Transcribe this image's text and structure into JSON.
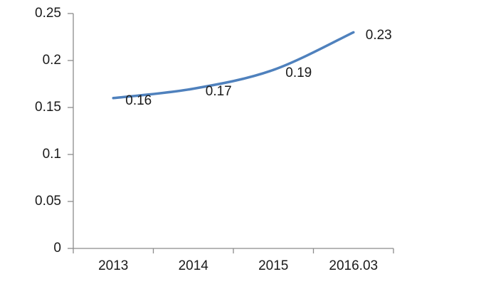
{
  "chart_data": {
    "type": "line",
    "title": "",
    "xlabel": "",
    "ylabel": "",
    "categories": [
      "2013",
      "2014",
      "2015",
      "2016.03"
    ],
    "series": [
      {
        "name": "",
        "values": [
          0.16,
          0.17,
          0.19,
          0.23
        ]
      }
    ],
    "data_labels": [
      "0.16",
      "0.17",
      "0.19",
      "0.23"
    ],
    "y_ticks": [
      "0",
      "0.05",
      "0.1",
      "0.15",
      "0.2",
      "0.25"
    ],
    "ylim": [
      0,
      0.25
    ],
    "grid": false,
    "legend": "none",
    "smooth": true,
    "line_color": "#4F81BD",
    "axis_color": "#8C8C8C",
    "text_color": "#1A1A1A",
    "background": "#FFFFFF"
  }
}
